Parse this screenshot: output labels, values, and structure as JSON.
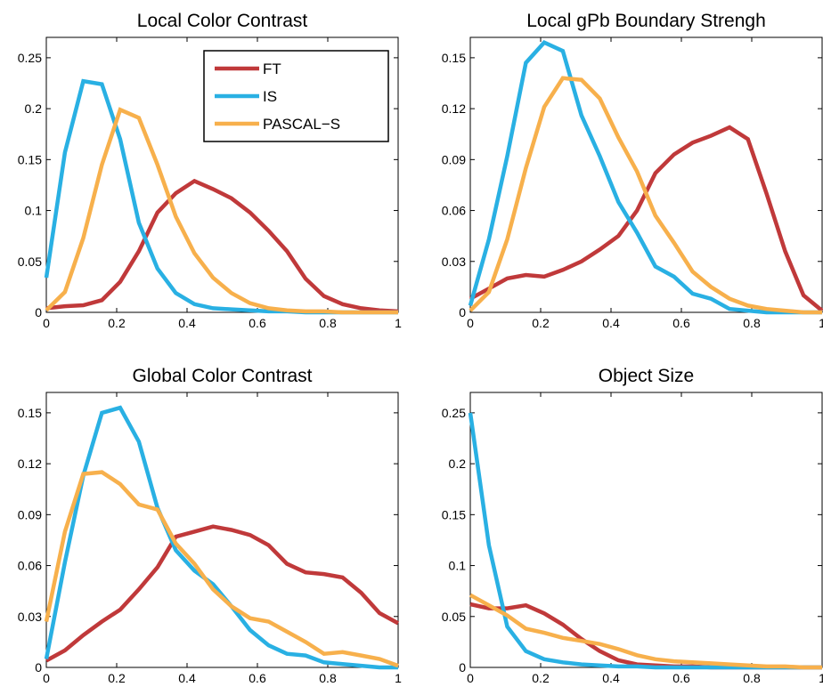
{
  "colors": {
    "FT": "#C0393A",
    "IS": "#29B0E3",
    "PASCAL-S": "#F7B04C"
  },
  "chart_data": [
    {
      "type": "line",
      "title": "Local Color Contrast",
      "xlabel": "",
      "ylabel": "",
      "xlim": [
        0,
        1
      ],
      "ylim": [
        0,
        0.27
      ],
      "xticks": [
        "0",
        "0.2",
        "0.4",
        "0.6",
        "0.8",
        "1"
      ],
      "yticks": [
        "0",
        "0.05",
        "0.1",
        "0.15",
        "0.2",
        "0.25"
      ],
      "grid": false,
      "legend": {
        "placement": "top-right",
        "entries": [
          "FT",
          "IS",
          "PASCAL−S"
        ]
      },
      "x": [
        0,
        0.053,
        0.105,
        0.158,
        0.21,
        0.263,
        0.316,
        0.368,
        0.421,
        0.474,
        0.526,
        0.579,
        0.632,
        0.684,
        0.737,
        0.789,
        0.842,
        0.895,
        0.947,
        1.0
      ],
      "series": [
        {
          "name": "FT",
          "values": [
            0.004,
            0.006,
            0.007,
            0.012,
            0.03,
            0.06,
            0.098,
            0.117,
            0.129,
            0.121,
            0.112,
            0.098,
            0.08,
            0.06,
            0.033,
            0.016,
            0.008,
            0.004,
            0.002,
            0.001
          ]
        },
        {
          "name": "IS",
          "values": [
            0.034,
            0.157,
            0.227,
            0.224,
            0.17,
            0.088,
            0.043,
            0.019,
            0.008,
            0.004,
            0.003,
            0.002,
            0.001,
            0.001,
            0.0,
            0.0,
            0.0,
            0.0,
            0.0,
            0.0
          ]
        },
        {
          "name": "PASCAL−S",
          "values": [
            0.002,
            0.02,
            0.073,
            0.145,
            0.199,
            0.191,
            0.145,
            0.094,
            0.058,
            0.034,
            0.019,
            0.009,
            0.004,
            0.002,
            0.001,
            0.001,
            0.0,
            0.0,
            0.0,
            0.0
          ]
        }
      ]
    },
    {
      "type": "line",
      "title": "Local gPb Boundary Strengh",
      "xlabel": "",
      "ylabel": "",
      "xlim": [
        0,
        1
      ],
      "ylim": [
        0,
        0.162
      ],
      "xticks": [
        "0",
        "0.2",
        "0.4",
        "0.6",
        "0.8",
        "1"
      ],
      "yticks": [
        "0",
        "0.03",
        "0.06",
        "0.09",
        "0.12",
        "0.15"
      ],
      "grid": false,
      "x": [
        0,
        0.053,
        0.105,
        0.158,
        0.21,
        0.263,
        0.316,
        0.368,
        0.421,
        0.474,
        0.526,
        0.579,
        0.632,
        0.684,
        0.737,
        0.789,
        0.842,
        0.895,
        0.947,
        1.0
      ],
      "series": [
        {
          "name": "FT",
          "values": [
            0.008,
            0.014,
            0.02,
            0.022,
            0.021,
            0.025,
            0.03,
            0.037,
            0.045,
            0.06,
            0.082,
            0.093,
            0.1,
            0.104,
            0.109,
            0.102,
            0.07,
            0.036,
            0.01,
            0.001
          ]
        },
        {
          "name": "IS",
          "values": [
            0.004,
            0.043,
            0.092,
            0.147,
            0.159,
            0.154,
            0.116,
            0.092,
            0.065,
            0.047,
            0.027,
            0.021,
            0.011,
            0.008,
            0.002,
            0.001,
            0.0,
            0.0,
            0.0,
            0.0
          ]
        },
        {
          "name": "PASCAL−S",
          "values": [
            0.001,
            0.012,
            0.043,
            0.085,
            0.121,
            0.138,
            0.137,
            0.126,
            0.103,
            0.083,
            0.057,
            0.041,
            0.024,
            0.015,
            0.008,
            0.004,
            0.002,
            0.001,
            0.0,
            0.0
          ]
        }
      ]
    },
    {
      "type": "line",
      "title": "Global Color Contrast",
      "xlabel": "",
      "ylabel": "",
      "xlim": [
        0,
        1
      ],
      "ylim": [
        0,
        0.162
      ],
      "xticks": [
        "0",
        "0.2",
        "0.4",
        "0.6",
        "0.8",
        "1"
      ],
      "yticks": [
        "0",
        "0.03",
        "0.06",
        "0.09",
        "0.12",
        "0.15"
      ],
      "grid": false,
      "x": [
        0,
        0.053,
        0.105,
        0.158,
        0.21,
        0.263,
        0.316,
        0.368,
        0.421,
        0.474,
        0.526,
        0.579,
        0.632,
        0.684,
        0.737,
        0.789,
        0.842,
        0.895,
        0.947,
        1.0
      ],
      "series": [
        {
          "name": "FT",
          "values": [
            0.004,
            0.01,
            0.019,
            0.027,
            0.034,
            0.046,
            0.059,
            0.077,
            0.08,
            0.083,
            0.081,
            0.078,
            0.072,
            0.061,
            0.056,
            0.055,
            0.053,
            0.044,
            0.032,
            0.026
          ]
        },
        {
          "name": "IS",
          "values": [
            0.005,
            0.062,
            0.113,
            0.15,
            0.153,
            0.133,
            0.094,
            0.069,
            0.057,
            0.049,
            0.036,
            0.022,
            0.013,
            0.008,
            0.007,
            0.003,
            0.002,
            0.001,
            0.0,
            0.0
          ]
        },
        {
          "name": "PASCAL−S",
          "values": [
            0.027,
            0.08,
            0.114,
            0.115,
            0.108,
            0.096,
            0.093,
            0.073,
            0.061,
            0.046,
            0.036,
            0.029,
            0.027,
            0.021,
            0.015,
            0.008,
            0.009,
            0.007,
            0.005,
            0.001
          ]
        }
      ]
    },
    {
      "type": "line",
      "title": "Object Size",
      "xlabel": "",
      "ylabel": "",
      "xlim": [
        0,
        1
      ],
      "ylim": [
        0,
        0.27
      ],
      "xticks": [
        "0",
        "0.2",
        "0.4",
        "0.6",
        "0.8",
        "1"
      ],
      "yticks": [
        "0",
        "0.05",
        "0.1",
        "0.15",
        "0.2",
        "0.25"
      ],
      "grid": false,
      "x": [
        0,
        0.053,
        0.105,
        0.158,
        0.21,
        0.263,
        0.316,
        0.368,
        0.421,
        0.474,
        0.526,
        0.579,
        0.632,
        0.684,
        0.737,
        0.789,
        0.842,
        0.895,
        0.947,
        1.0
      ],
      "series": [
        {
          "name": "FT",
          "values": [
            0.062,
            0.058,
            0.058,
            0.061,
            0.053,
            0.042,
            0.028,
            0.016,
            0.007,
            0.003,
            0.002,
            0.001,
            0.001,
            0.0,
            0.0,
            0.0,
            0.0,
            0.0,
            0.0,
            0.0
          ]
        },
        {
          "name": "IS",
          "values": [
            0.25,
            0.12,
            0.04,
            0.016,
            0.008,
            0.005,
            0.003,
            0.002,
            0.001,
            0.001,
            0.0,
            0.0,
            0.0,
            0.0,
            0.0,
            0.0,
            0.0,
            0.0,
            0.0,
            0.0
          ]
        },
        {
          "name": "PASCAL−S",
          "values": [
            0.071,
            0.061,
            0.051,
            0.038,
            0.034,
            0.029,
            0.026,
            0.023,
            0.018,
            0.012,
            0.008,
            0.006,
            0.005,
            0.004,
            0.003,
            0.002,
            0.001,
            0.001,
            0.0,
            0.0
          ]
        }
      ]
    }
  ]
}
